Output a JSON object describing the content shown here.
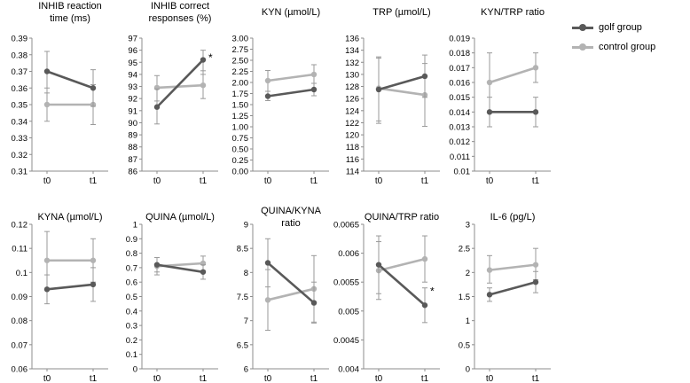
{
  "colors": {
    "golf": "#595959",
    "control": "#b3b3b3",
    "axis": "#8c8c8c",
    "error": "#9a9a9a"
  },
  "legend": {
    "items": [
      {
        "label": "golf group",
        "color": "#595959"
      },
      {
        "label": "control group",
        "color": "#b3b3b3"
      }
    ]
  },
  "chart_data": [
    {
      "type": "line",
      "title": [
        "INHIB reaction",
        "time (ms)"
      ],
      "categories": [
        "t0",
        "t1"
      ],
      "ylim": [
        0.31,
        0.39
      ],
      "yticks": [
        "0.31",
        "0.32",
        "0.33",
        "0.34",
        "0.35",
        "0.36",
        "0.37",
        "0.38",
        "0.39"
      ],
      "series": [
        {
          "name": "golf group",
          "values": [
            0.37,
            0.36
          ],
          "err_low": [
            0.357,
            0.349
          ],
          "err_high": [
            0.382,
            0.371
          ]
        },
        {
          "name": "control group",
          "values": [
            0.35,
            0.35
          ],
          "err_low": [
            0.34,
            0.338
          ],
          "err_high": [
            0.36,
            0.362
          ]
        }
      ],
      "annotations": []
    },
    {
      "type": "line",
      "title": [
        "INHIB correct",
        "responses (%)"
      ],
      "categories": [
        "t0",
        "t1"
      ],
      "ylim": [
        86,
        97
      ],
      "yticks": [
        "86",
        "87",
        "88",
        "89",
        "90",
        "91",
        "92",
        "93",
        "94",
        "95",
        "96",
        "97"
      ],
      "series": [
        {
          "name": "golf group",
          "values": [
            91.3,
            95.2
          ],
          "err_low": [
            89.9,
            94.0
          ],
          "err_high": [
            92.8,
            96.0
          ]
        },
        {
          "name": "control group",
          "values": [
            92.9,
            93.1
          ],
          "err_low": [
            91.8,
            92.0
          ],
          "err_high": [
            93.9,
            94.3
          ]
        }
      ],
      "annotations": [
        {
          "text": "*",
          "x_index": 1,
          "y": 95.4
        }
      ]
    },
    {
      "type": "line",
      "title": [
        "KYN (µmol/L)"
      ],
      "categories": [
        "t0",
        "t1"
      ],
      "ylim": [
        0,
        3
      ],
      "yticks": [
        "0.00",
        "0.25",
        "0.50",
        "0.75",
        "1.00",
        "1.25",
        "1.50",
        "1.75",
        "2.00",
        "2.25",
        "2.50",
        "2.75",
        "3.00"
      ],
      "series": [
        {
          "name": "golf group",
          "values": [
            1.69,
            1.84
          ],
          "err_low": [
            1.59,
            1.7
          ],
          "err_high": [
            1.8,
            1.98
          ]
        },
        {
          "name": "control group",
          "values": [
            2.04,
            2.18
          ],
          "err_low": [
            1.8,
            1.98
          ],
          "err_high": [
            2.27,
            2.4
          ]
        }
      ],
      "annotations": []
    },
    {
      "type": "line",
      "title": [
        "TRP (µmol/L)"
      ],
      "categories": [
        "t0",
        "t1"
      ],
      "ylim": [
        114,
        136
      ],
      "yticks": [
        "114",
        "116",
        "118",
        "120",
        "122",
        "124",
        "126",
        "128",
        "130",
        "132",
        "134",
        "136"
      ],
      "series": [
        {
          "name": "golf group",
          "values": [
            127.5,
            129.7
          ],
          "err_low": [
            122.3,
            126.2
          ],
          "err_high": [
            132.9,
            133.2
          ]
        },
        {
          "name": "control group",
          "values": [
            127.7,
            126.6
          ],
          "err_low": [
            121.9,
            121.4
          ],
          "err_high": [
            132.7,
            131.8
          ]
        }
      ],
      "annotations": []
    },
    {
      "type": "line",
      "title": [
        "KYN/TRP ratio"
      ],
      "categories": [
        "t0",
        "t1"
      ],
      "ylim": [
        0.01,
        0.019
      ],
      "yticks": [
        "0.01",
        "0.011",
        "0.012",
        "0.013",
        "0.014",
        "0.015",
        "0.016",
        "0.017",
        "0.018",
        "0.019"
      ],
      "series": [
        {
          "name": "golf group",
          "values": [
            0.014,
            0.014
          ],
          "err_low": [
            0.013,
            0.013
          ],
          "err_high": [
            0.015,
            0.015
          ]
        },
        {
          "name": "control group",
          "values": [
            0.016,
            0.017
          ],
          "err_low": [
            0.014,
            0.016
          ],
          "err_high": [
            0.018,
            0.018
          ]
        }
      ],
      "annotations": []
    },
    {
      "type": "line",
      "title": [
        "KYNA (µmol/L)"
      ],
      "categories": [
        "t0",
        "t1"
      ],
      "ylim": [
        0.06,
        0.12
      ],
      "yticks": [
        "0.06",
        "0.07",
        "0.08",
        "0.09",
        "0.1",
        "0.11",
        "0.12"
      ],
      "series": [
        {
          "name": "golf group",
          "values": [
            0.093,
            0.095
          ],
          "err_low": [
            0.087,
            0.088
          ],
          "err_high": [
            0.099,
            0.102
          ]
        },
        {
          "name": "control group",
          "values": [
            0.105,
            0.105
          ],
          "err_low": [
            0.093,
            0.096
          ],
          "err_high": [
            0.117,
            0.114
          ]
        }
      ],
      "annotations": []
    },
    {
      "type": "line",
      "title": [
        "QUINA (µmol/L)"
      ],
      "categories": [
        "t0",
        "t1"
      ],
      "ylim": [
        0,
        1
      ],
      "yticks": [
        "0",
        "0.1",
        "0.2",
        "0.3",
        "0.4",
        "0.5",
        "0.6",
        "0.7",
        "0.8",
        "0.9",
        "1"
      ],
      "series": [
        {
          "name": "golf group",
          "values": [
            0.72,
            0.67
          ],
          "err_low": [
            0.67,
            0.62
          ],
          "err_high": [
            0.77,
            0.72
          ]
        },
        {
          "name": "control group",
          "values": [
            0.71,
            0.73
          ],
          "err_low": [
            0.65,
            0.68
          ],
          "err_high": [
            0.77,
            0.78
          ]
        }
      ],
      "annotations": []
    },
    {
      "type": "line",
      "title": [
        "QUINA/KYNA",
        "ratio"
      ],
      "categories": [
        "t0",
        "t1"
      ],
      "ylim": [
        6,
        9
      ],
      "yticks": [
        "6",
        "6.5",
        "7",
        "7.5",
        "8",
        "8.5",
        "9"
      ],
      "series": [
        {
          "name": "golf group",
          "values": [
            8.2,
            7.37
          ],
          "err_low": [
            7.7,
            6.95
          ],
          "err_high": [
            8.7,
            7.8
          ]
        },
        {
          "name": "control group",
          "values": [
            7.43,
            7.66
          ],
          "err_low": [
            6.8,
            6.97
          ],
          "err_high": [
            8.06,
            8.35
          ]
        }
      ],
      "annotations": []
    },
    {
      "type": "line",
      "title": [
        "QUINA/TRP ratio"
      ],
      "categories": [
        "t0",
        "t1"
      ],
      "ylim": [
        0.004,
        0.0065
      ],
      "yticks": [
        "0.004",
        "0.0045",
        "0.005",
        "0.0055",
        "0.006",
        "0.0065"
      ],
      "series": [
        {
          "name": "golf group",
          "values": [
            0.0058,
            0.0051
          ],
          "err_low": [
            0.0053,
            0.0048
          ],
          "err_high": [
            0.0063,
            0.0054
          ]
        },
        {
          "name": "control group",
          "values": [
            0.0057,
            0.0059
          ],
          "err_low": [
            0.0052,
            0.0055
          ],
          "err_high": [
            0.0062,
            0.0063
          ]
        }
      ],
      "annotations": [
        {
          "text": "*",
          "x_index": 1,
          "y": 0.00534
        }
      ]
    },
    {
      "type": "line",
      "title": [
        "IL-6 (pg/L)"
      ],
      "categories": [
        "t0",
        "t1"
      ],
      "ylim": [
        0,
        3
      ],
      "yticks": [
        "0",
        "0.5",
        "1",
        "1.5",
        "2",
        "2.5",
        "3"
      ],
      "series": [
        {
          "name": "golf group",
          "values": [
            1.54,
            1.8
          ],
          "err_low": [
            1.4,
            1.58
          ],
          "err_high": [
            1.68,
            2.02
          ]
        },
        {
          "name": "control group",
          "values": [
            2.05,
            2.16
          ],
          "err_low": [
            1.78,
            1.85
          ],
          "err_high": [
            2.35,
            2.5
          ]
        }
      ],
      "annotations": []
    }
  ]
}
